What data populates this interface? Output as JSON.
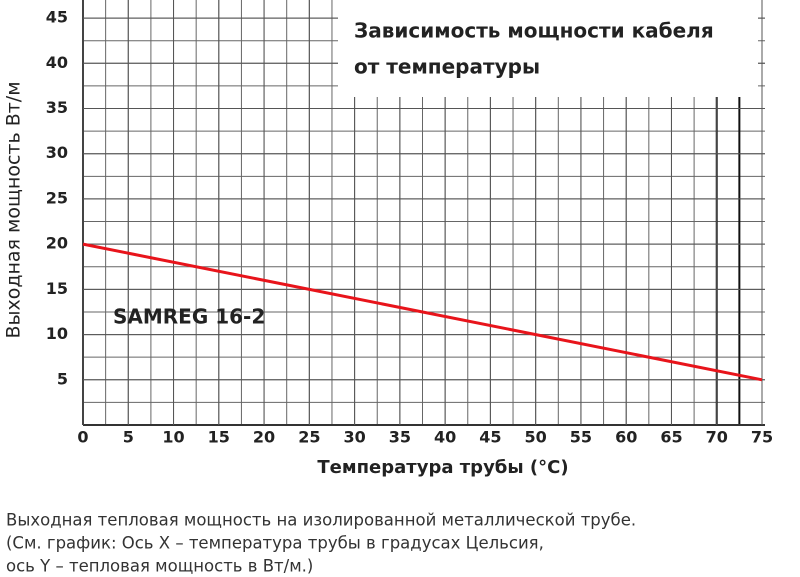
{
  "chart_data": {
    "type": "line",
    "title": [
      "Зависимость мощности кабеля",
      "от температуры"
    ],
    "x_label": "Температура трубы (°C)",
    "y_label": "Выходная мощность Вт/м",
    "x": [
      0,
      75
    ],
    "series": [
      {
        "name": "SAMREG 16-2",
        "color": "#e8141b",
        "values": [
          20,
          5
        ]
      }
    ],
    "xlim": [
      0,
      75
    ],
    "ylim": [
      0,
      47
    ],
    "xticks": [
      0,
      5,
      10,
      15,
      20,
      25,
      30,
      35,
      40,
      45,
      50,
      55,
      60,
      65,
      70,
      75
    ],
    "yticks": [
      5,
      10,
      15,
      20,
      25,
      30,
      35,
      40,
      45
    ],
    "grid": true,
    "minor_grid_step": 2.5,
    "reference_lines_x": [
      70,
      72.5
    ],
    "caption": [
      "Выходная тепловая мощность на изолированной металлической трубе.",
      "(См. график: Ось X – температура трубы в градусах Цельсия,",
      "ось Y –  тепловая мощность в Вт/м.)"
    ]
  }
}
